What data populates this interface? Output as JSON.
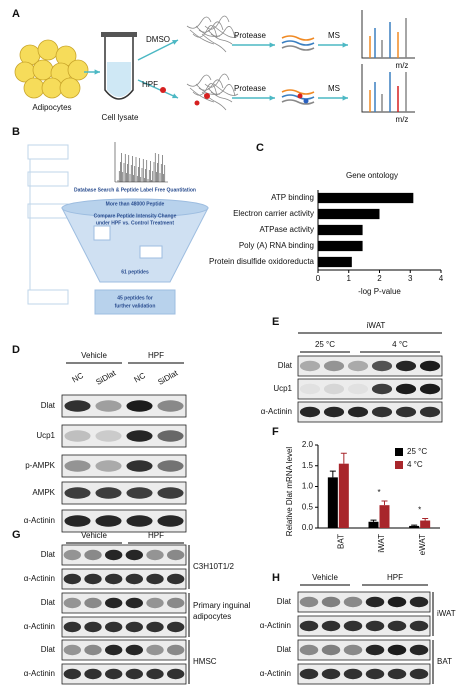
{
  "panel_a": {
    "label": "A",
    "cells": "Adipocytes",
    "lysate": "Cell lysate",
    "control": "DMSO",
    "drug": "HPF",
    "protease_top": "Protease",
    "protease_bottom": "Protease",
    "ms_top": "MS",
    "ms_bottom": "MS",
    "mz_top": "m/z",
    "mz_bottom": "m/z"
  },
  "panel_b": {
    "label": "B",
    "search": "Database Search & Peptide Label Free Quantitation",
    "peptides": "More than 48000 Peptide",
    "compare_1": "Compare Peptide Intensity Change",
    "compare_2": "under HPF vs. Control Treatment",
    "found": "61 peptides",
    "final_1": "45 peptides for",
    "final_2": "further validation"
  },
  "panel_c_label": "C",
  "panel_f_label": "F",
  "chart_data": [
    {
      "type": "hbar",
      "title": "Gene ontology",
      "x_label": "-log P-value",
      "categories": [
        "ATP binding",
        "Electron carrier activity",
        "ATPase activity",
        "Poly (A) RNA binding",
        "Protein disulfide oxidoreducta"
      ],
      "values": [
        3.1,
        2.0,
        1.45,
        1.45,
        1.1
      ],
      "color": "#000000",
      "xlim": [
        0,
        4
      ],
      "xticks": [
        0,
        1,
        2,
        3,
        4
      ]
    },
    {
      "type": "grouped_bar",
      "y_label": "Relative Dlat mRNA level",
      "categories": [
        "BAT",
        "iWAT",
        "eWAT"
      ],
      "series": [
        {
          "name": "25 °C",
          "color": "#000000",
          "values": [
            1.22,
            0.15,
            0.05
          ],
          "errors": [
            0.15,
            0.04,
            0.02
          ]
        },
        {
          "name": "4 °C",
          "color": "#a8262b",
          "values": [
            1.55,
            0.55,
            0.18
          ],
          "errors": [
            0.25,
            0.1,
            0.05
          ]
        }
      ],
      "ylim": [
        0,
        2
      ],
      "yticks": [
        {
          "value": 0,
          "label": "0.0"
        },
        0.5,
        {
          "value": 1,
          "label": "1.0"
        },
        1.5,
        {
          "value": 2,
          "label": "2.0"
        }
      ],
      "annotations": [
        {
          "text": "*",
          "category": "iWAT"
        },
        {
          "text": "*",
          "category": "eWAT"
        }
      ]
    }
  ],
  "panel_d": {
    "label": "D",
    "groups": [
      "Vehicle",
      "HPF"
    ],
    "lanes": [
      "NC",
      "SiDlat",
      "NC",
      "SiDlat"
    ],
    "rows": [
      "Dlat",
      "Ucp1",
      "p-AMPK",
      "AMPK",
      "α-Actinin"
    ]
  },
  "panel_e": {
    "label": "E",
    "tissue": "iWAT",
    "groups": [
      "25 °C",
      "4 °C"
    ],
    "rows": [
      "Dlat",
      "Ucp1",
      "α-Actinin"
    ]
  },
  "panel_g": {
    "label": "G",
    "groups": [
      "Vehicle",
      "HPF"
    ],
    "rows": [
      "Dlat",
      "α-Actinin",
      "Dlat",
      "α-Actinin",
      "Dlat",
      "α-Actinin"
    ],
    "cell_lines": [
      "C3H10T1/2",
      "Primary inguinal",
      "adipocytes",
      "HMSC"
    ]
  },
  "panel_h": {
    "label": "H",
    "groups": [
      "Vehicle",
      "HPF"
    ],
    "rows": [
      "Dlat",
      "α-Actinin",
      "Dlat",
      "α-Actinin"
    ],
    "tissues": [
      "iWAT",
      "BAT"
    ]
  }
}
